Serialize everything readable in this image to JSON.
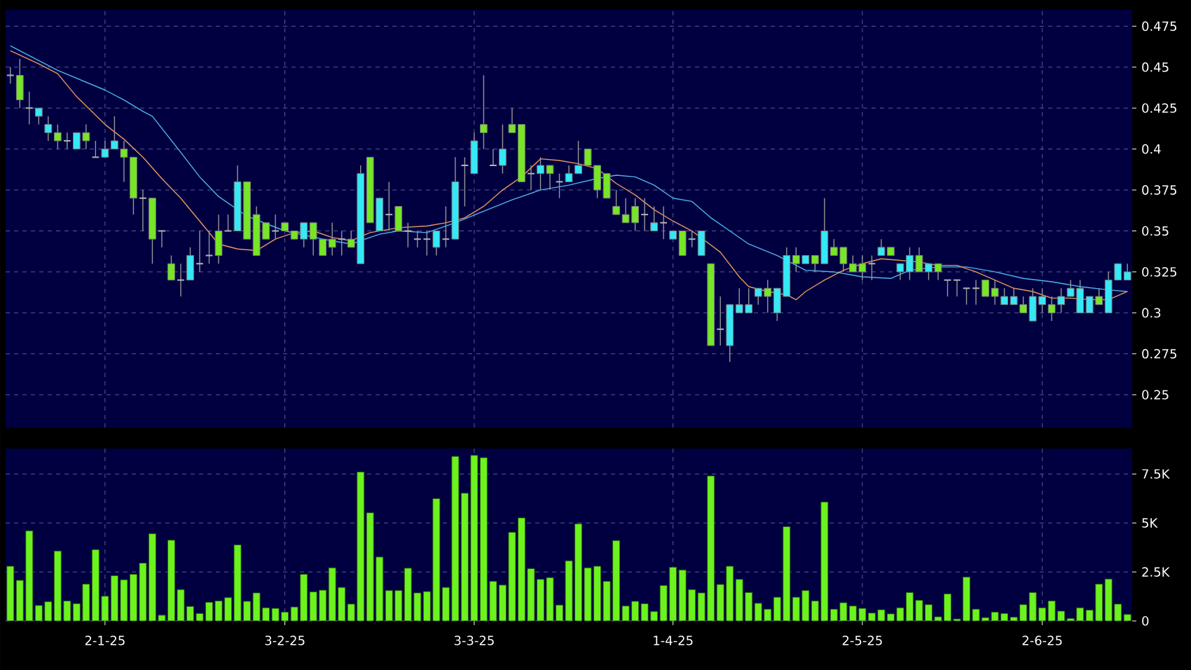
{
  "chart_data": [
    {
      "type": "candlestick",
      "tick_labels": "y",
      "grid": true,
      "ylim": [
        0.23,
        0.485
      ],
      "yticks": [
        0.25,
        0.275,
        0.3,
        0.325,
        0.35,
        0.375,
        0.4,
        0.425,
        0.45,
        0.475
      ],
      "categories": [
        null,
        null,
        null,
        null,
        null,
        null,
        null,
        null,
        null,
        null,
        null,
        null,
        null,
        null,
        null,
        null,
        null,
        null,
        null,
        null,
        null,
        null,
        null,
        null,
        null,
        null,
        null,
        null,
        null,
        null,
        null,
        null,
        null,
        null,
        null,
        null,
        null,
        null,
        null,
        null,
        null,
        null,
        null,
        null,
        null,
        null,
        null,
        null,
        null,
        null,
        null,
        null,
        null,
        null,
        null,
        null,
        null,
        null,
        null,
        null,
        null,
        null,
        null,
        null,
        null,
        null,
        null,
        null,
        null,
        null,
        null,
        null,
        null,
        null,
        null,
        null,
        null,
        null,
        null,
        null,
        null,
        null,
        null,
        null,
        null,
        null,
        null,
        null,
        null,
        null,
        null,
        null,
        null,
        null,
        null,
        null,
        null,
        null,
        null,
        null,
        null,
        null,
        null,
        null,
        null,
        null,
        null,
        null,
        null,
        null,
        null,
        null,
        null,
        null,
        null,
        null,
        null,
        null,
        null
      ],
      "series": [
        {
          "type": "line",
          "color": "#4fb4ee",
          "values": [
            0.463,
            null,
            null,
            null,
            null,
            0.448,
            null,
            null,
            null,
            null,
            0.436,
            null,
            0.43,
            null,
            0.423,
            0.42,
            null,
            null,
            0.398,
            null,
            0.383,
            null,
            0.371,
            null,
            null,
            0.359,
            null,
            null,
            null,
            0.35,
            null,
            null,
            null,
            0.345,
            null,
            null,
            0.342,
            null,
            null,
            0.348,
            null,
            0.35,
            null,
            null,
            0.349,
            null,
            null,
            0.355,
            null,
            null,
            0.362,
            null,
            null,
            0.369,
            null,
            null,
            0.375,
            null,
            null,
            0.378,
            null,
            null,
            0.382,
            null,
            0.384,
            null,
            0.383,
            null,
            0.378,
            null,
            0.37,
            null,
            0.368,
            null,
            0.358,
            null,
            0.35,
            null,
            0.342,
            null,
            null,
            0.335,
            null,
            null,
            0.326,
            null,
            null,
            0.325,
            null,
            null,
            0.322,
            null,
            null,
            0.321,
            null,
            0.326,
            null,
            null,
            0.328,
            null,
            null,
            0.328,
            null,
            null,
            0.325,
            null,
            null,
            0.321,
            null,
            null,
            0.319,
            null,
            null,
            0.316,
            null,
            null,
            0.314,
            null,
            0.313
          ]
        },
        {
          "type": "line",
          "color": "#e8975e",
          "values": [
            0.46,
            null,
            null,
            0.452,
            null,
            0.446,
            null,
            0.432,
            null,
            null,
            0.415,
            null,
            0.406,
            null,
            0.395,
            null,
            0.382,
            null,
            0.37,
            null,
            0.356,
            null,
            0.342,
            null,
            0.339,
            null,
            0.338,
            null,
            0.345,
            null,
            0.349,
            null,
            0.35,
            null,
            0.346,
            null,
            0.344,
            null,
            0.349,
            null,
            null,
            0.352,
            null,
            null,
            0.353,
            null,
            0.355,
            null,
            0.358,
            null,
            0.365,
            null,
            0.375,
            null,
            0.383,
            null,
            0.394,
            null,
            0.393,
            null,
            0.391,
            null,
            0.388,
            null,
            0.379,
            null,
            0.372,
            null,
            0.363,
            null,
            0.356,
            null,
            0.35,
            null,
            null,
            0.337,
            null,
            0.322,
            0.316,
            null,
            0.313,
            null,
            0.311,
            0.308,
            0.313,
            null,
            0.32,
            null,
            0.326,
            null,
            0.33,
            null,
            0.333,
            null,
            0.332,
            null,
            0.331,
            null,
            0.329,
            null,
            0.329,
            null,
            0.325,
            null,
            0.32,
            null,
            0.315,
            null,
            0.313,
            null,
            0.309,
            null,
            0.309,
            null,
            0.308,
            null,
            0.308,
            null,
            0.313
          ]
        },
        {
          "type": "candlestick",
          "ohlc": [
            [
              0.445,
              0.45,
              0.44,
              0.445
            ],
            [
              0.445,
              0.455,
              0.425,
              0.43
            ],
            [
              0.425,
              0.435,
              0.415,
              0.425
            ],
            [
              0.42,
              0.425,
              0.415,
              0.425
            ],
            [
              0.41,
              0.42,
              0.405,
              0.415
            ],
            [
              0.41,
              0.415,
              0.4,
              0.405
            ],
            [
              0.405,
              0.41,
              0.4,
              0.405
            ],
            [
              0.4,
              0.41,
              0.4,
              0.41
            ],
            [
              0.41,
              0.415,
              0.4,
              0.405
            ],
            [
              0.395,
              0.405,
              0.395,
              0.395
            ],
            [
              0.395,
              0.405,
              0.395,
              0.4
            ],
            [
              0.4,
              0.42,
              0.4,
              0.405
            ],
            [
              0.4,
              0.405,
              0.38,
              0.395
            ],
            [
              0.395,
              0.395,
              0.36,
              0.37
            ],
            [
              0.37,
              0.375,
              0.35,
              0.37
            ],
            [
              0.37,
              0.37,
              0.33,
              0.345
            ],
            [
              0.35,
              0.35,
              0.34,
              0.35
            ],
            [
              0.33,
              0.335,
              0.32,
              0.32
            ],
            [
              0.32,
              0.33,
              0.31,
              0.32
            ],
            [
              0.32,
              0.34,
              0.32,
              0.335
            ],
            [
              0.33,
              0.35,
              0.325,
              0.33
            ],
            [
              0.335,
              0.35,
              0.33,
              0.335
            ],
            [
              0.35,
              0.36,
              0.33,
              0.335
            ],
            [
              0.35,
              0.36,
              0.35,
              0.35
            ],
            [
              0.35,
              0.39,
              0.35,
              0.38
            ],
            [
              0.38,
              0.38,
              0.345,
              0.345
            ],
            [
              0.36,
              0.365,
              0.335,
              0.335
            ],
            [
              0.355,
              0.355,
              0.345,
              0.345
            ],
            [
              0.35,
              0.36,
              0.345,
              0.35
            ],
            [
              0.355,
              0.355,
              0.35,
              0.35
            ],
            [
              0.35,
              0.35,
              0.345,
              0.345
            ],
            [
              0.345,
              0.355,
              0.34,
              0.355
            ],
            [
              0.355,
              0.355,
              0.335,
              0.345
            ],
            [
              0.345,
              0.345,
              0.335,
              0.335
            ],
            [
              0.345,
              0.355,
              0.335,
              0.34
            ],
            [
              0.345,
              0.35,
              0.335,
              0.345
            ],
            [
              0.345,
              0.35,
              0.34,
              0.34
            ],
            [
              0.33,
              0.39,
              0.33,
              0.385
            ],
            [
              0.395,
              0.395,
              0.355,
              0.355
            ],
            [
              0.35,
              0.37,
              0.35,
              0.37
            ],
            [
              0.36,
              0.38,
              0.35,
              0.36
            ],
            [
              0.365,
              0.365,
              0.35,
              0.35
            ],
            [
              0.35,
              0.355,
              0.34,
              0.35
            ],
            [
              0.345,
              0.35,
              0.34,
              0.345
            ],
            [
              0.345,
              0.35,
              0.335,
              0.345
            ],
            [
              0.34,
              0.35,
              0.335,
              0.35
            ],
            [
              0.345,
              0.365,
              0.34,
              0.345
            ],
            [
              0.345,
              0.395,
              0.345,
              0.38
            ],
            [
              0.39,
              0.395,
              0.365,
              0.39
            ],
            [
              0.385,
              0.41,
              0.385,
              0.405
            ],
            [
              0.415,
              0.445,
              0.4,
              0.41
            ],
            [
              0.39,
              0.4,
              0.39,
              0.39
            ],
            [
              0.39,
              0.415,
              0.385,
              0.4
            ],
            [
              0.415,
              0.425,
              0.41,
              0.41
            ],
            [
              0.415,
              0.415,
              0.38,
              0.38
            ],
            [
              0.385,
              0.39,
              0.375,
              0.385
            ],
            [
              0.385,
              0.395,
              0.375,
              0.39
            ],
            [
              0.39,
              0.39,
              0.375,
              0.385
            ],
            [
              0.38,
              0.385,
              0.37,
              0.38
            ],
            [
              0.38,
              0.39,
              0.38,
              0.385
            ],
            [
              0.385,
              0.405,
              0.385,
              0.39
            ],
            [
              0.4,
              0.4,
              0.39,
              0.39
            ],
            [
              0.39,
              0.39,
              0.37,
              0.375
            ],
            [
              0.385,
              0.385,
              0.37,
              0.37
            ],
            [
              0.365,
              0.375,
              0.36,
              0.36
            ],
            [
              0.36,
              0.37,
              0.355,
              0.355
            ],
            [
              0.365,
              0.37,
              0.35,
              0.355
            ],
            [
              0.36,
              0.37,
              0.35,
              0.36
            ],
            [
              0.35,
              0.365,
              0.35,
              0.355
            ],
            [
              0.355,
              0.365,
              0.345,
              0.355
            ],
            [
              0.345,
              0.35,
              0.345,
              0.35
            ],
            [
              0.35,
              0.35,
              0.335,
              0.335
            ],
            [
              0.345,
              0.35,
              0.34,
              0.345
            ],
            [
              0.335,
              0.35,
              0.335,
              0.35
            ],
            [
              0.33,
              0.33,
              0.28,
              0.28
            ],
            [
              0.29,
              0.31,
              0.28,
              0.29
            ],
            [
              0.28,
              0.305,
              0.27,
              0.305
            ],
            [
              0.3,
              0.315,
              0.3,
              0.305
            ],
            [
              0.3,
              0.315,
              0.3,
              0.305
            ],
            [
              0.31,
              0.315,
              0.305,
              0.315
            ],
            [
              0.315,
              0.32,
              0.3,
              0.31
            ],
            [
              0.3,
              0.315,
              0.295,
              0.315
            ],
            [
              0.31,
              0.34,
              0.31,
              0.335
            ],
            [
              0.335,
              0.34,
              0.325,
              0.33
            ],
            [
              0.33,
              0.335,
              0.33,
              0.335
            ],
            [
              0.335,
              0.335,
              0.325,
              0.33
            ],
            [
              0.33,
              0.37,
              0.33,
              0.35
            ],
            [
              0.34,
              0.345,
              0.335,
              0.335
            ],
            [
              0.34,
              0.34,
              0.325,
              0.33
            ],
            [
              0.33,
              0.335,
              0.325,
              0.325
            ],
            [
              0.33,
              0.335,
              0.32,
              0.325
            ],
            [
              0.33,
              0.335,
              0.32,
              0.33
            ],
            [
              0.335,
              0.345,
              0.335,
              0.34
            ],
            [
              0.34,
              0.34,
              0.335,
              0.335
            ],
            [
              0.325,
              0.33,
              0.32,
              0.33
            ],
            [
              0.325,
              0.34,
              0.32,
              0.335
            ],
            [
              0.335,
              0.34,
              0.325,
              0.325
            ],
            [
              0.325,
              0.33,
              0.32,
              0.33
            ],
            [
              0.33,
              0.33,
              0.32,
              0.325
            ],
            [
              0.32,
              0.32,
              0.31,
              0.32
            ],
            [
              0.32,
              0.32,
              0.31,
              0.32
            ],
            [
              0.315,
              0.315,
              0.305,
              0.315
            ],
            [
              0.315,
              0.32,
              0.305,
              0.315
            ],
            [
              0.32,
              0.32,
              0.31,
              0.31
            ],
            [
              0.315,
              0.32,
              0.305,
              0.31
            ],
            [
              0.305,
              0.315,
              0.305,
              0.31
            ],
            [
              0.305,
              0.315,
              0.305,
              0.31
            ],
            [
              0.305,
              0.31,
              0.3,
              0.3
            ],
            [
              0.295,
              0.315,
              0.295,
              0.31
            ],
            [
              0.305,
              0.315,
              0.3,
              0.31
            ],
            [
              0.305,
              0.31,
              0.295,
              0.3
            ],
            [
              0.305,
              0.315,
              0.3,
              0.31
            ],
            [
              0.31,
              0.32,
              0.31,
              0.315
            ],
            [
              0.3,
              0.32,
              0.3,
              0.315
            ],
            [
              0.3,
              0.31,
              0.3,
              0.31
            ],
            [
              0.31,
              0.315,
              0.305,
              0.305
            ],
            [
              0.3,
              0.325,
              0.3,
              0.32
            ],
            [
              0.32,
              0.33,
              0.32,
              0.33
            ],
            [
              0.32,
              0.33,
              0.32,
              0.325
            ]
          ],
          "colors": [
            "#b4b4b4",
            "#77e627",
            "#b4b4b4",
            "#36e8f5",
            "#36e8f5",
            "#77e627",
            "#b4b4b4",
            "#36e8f5",
            "#77e627",
            "#b4b4b4",
            "#36e8f5",
            "#36e8f5",
            "#77e627",
            "#77e627",
            "#b4b4b4",
            "#77e627",
            "#b4b4b4",
            "#77e627",
            "#b4b4b4",
            "#36e8f5",
            "#b4b4b4",
            "#b4b4b4",
            "#77e627",
            "#b4b4b4",
            "#36e8f5",
            "#77e627",
            "#77e627",
            "#77e627",
            "#b4b4b4",
            "#77e627",
            "#77e627",
            "#36e8f5",
            "#77e627",
            "#77e627",
            "#77e627",
            "#b4b4b4",
            "#77e627",
            "#36e8f5",
            "#77e627",
            "#36e8f5",
            "#b4b4b4",
            "#77e627",
            "#b4b4b4",
            "#b4b4b4",
            "#b4b4b4",
            "#36e8f5",
            "#b4b4b4",
            "#36e8f5",
            "#b4b4b4",
            "#36e8f5",
            "#77e627",
            "#b4b4b4",
            "#36e8f5",
            "#77e627",
            "#77e627",
            "#b4b4b4",
            "#36e8f5",
            "#77e627",
            "#b4b4b4",
            "#36e8f5",
            "#36e8f5",
            "#77e627",
            "#77e627",
            "#77e627",
            "#77e627",
            "#77e627",
            "#77e627",
            "#b4b4b4",
            "#36e8f5",
            "#b4b4b4",
            "#36e8f5",
            "#77e627",
            "#b4b4b4",
            "#36e8f5",
            "#77e627",
            "#b4b4b4",
            "#36e8f5",
            "#36e8f5",
            "#36e8f5",
            "#36e8f5",
            "#77e627",
            "#36e8f5",
            "#36e8f5",
            "#77e627",
            "#36e8f5",
            "#77e627",
            "#36e8f5",
            "#77e627",
            "#77e627",
            "#77e627",
            "#77e627",
            "#b4b4b4",
            "#36e8f5",
            "#77e627",
            "#36e8f5",
            "#36e8f5",
            "#77e627",
            "#36e8f5",
            "#77e627",
            "#b4b4b4",
            "#b4b4b4",
            "#b4b4b4",
            "#b4b4b4",
            "#77e627",
            "#77e627",
            "#36e8f5",
            "#36e8f5",
            "#77e627",
            "#36e8f5",
            "#36e8f5",
            "#77e627",
            "#36e8f5",
            "#36e8f5",
            "#36e8f5",
            "#36e8f5",
            "#77e627",
            "#36e8f5",
            "#36e8f5",
            "#36e8f5"
          ]
        }
      ]
    },
    {
      "type": "bar",
      "grid": true,
      "color": "#6cf21e",
      "ylim": [
        0,
        8800
      ],
      "yticks": [
        0,
        {
          "value": 2500,
          "label": "2.5K"
        },
        {
          "value": 5000,
          "label": "5K"
        },
        {
          "value": 7500,
          "label": "7.5K"
        }
      ],
      "categories": [
        null,
        null,
        null,
        null,
        null,
        null,
        null,
        null,
        null,
        null,
        "2-1-25",
        null,
        null,
        null,
        null,
        null,
        null,
        null,
        null,
        null,
        null,
        null,
        null,
        null,
        null,
        null,
        null,
        null,
        null,
        "3-2-25",
        null,
        null,
        null,
        null,
        null,
        null,
        null,
        null,
        null,
        null,
        null,
        null,
        null,
        null,
        null,
        null,
        null,
        null,
        null,
        "3-3-25",
        null,
        null,
        null,
        null,
        null,
        null,
        null,
        null,
        null,
        null,
        null,
        null,
        null,
        null,
        null,
        null,
        null,
        null,
        null,
        null,
        "1-4-25",
        null,
        null,
        null,
        null,
        null,
        null,
        null,
        null,
        null,
        null,
        null,
        null,
        null,
        null,
        null,
        null,
        null,
        null,
        null,
        "2-5-25",
        null,
        null,
        null,
        null,
        null,
        null,
        null,
        null,
        null,
        null,
        null,
        null,
        null,
        null,
        null,
        null,
        null,
        null,
        "2-6-25",
        null,
        null,
        null,
        null,
        null,
        null,
        null,
        null,
        null
      ],
      "values": [
        2790,
        2070,
        4600,
        790,
        980,
        3570,
        1020,
        880,
        1880,
        3640,
        1260,
        2310,
        2100,
        2380,
        2950,
        4450,
        290,
        4120,
        1600,
        740,
        380,
        950,
        1020,
        1190,
        3880,
        1000,
        1430,
        670,
        640,
        450,
        710,
        2380,
        1480,
        1570,
        2710,
        1710,
        860,
        7600,
        5520,
        3260,
        1550,
        1550,
        2690,
        1430,
        1500,
        6240,
        1710,
        8400,
        6520,
        8450,
        8330,
        2020,
        1830,
        4520,
        5260,
        2670,
        2120,
        2210,
        810,
        3070,
        4950,
        2710,
        2790,
        2020,
        4100,
        760,
        1000,
        880,
        480,
        1810,
        2740,
        2600,
        1600,
        1430,
        7400,
        1860,
        2790,
        2120,
        1450,
        900,
        600,
        1210,
        4810,
        1210,
        1550,
        1020,
        6070,
        600,
        930,
        760,
        640,
        400,
        570,
        360,
        670,
        1450,
        1050,
        830,
        210,
        1380,
        100,
        2240,
        600,
        170,
        450,
        380,
        190,
        830,
        1450,
        670,
        1020,
        500,
        120,
        670,
        550,
        1880,
        2140,
        860,
        330
      ]
    }
  ]
}
